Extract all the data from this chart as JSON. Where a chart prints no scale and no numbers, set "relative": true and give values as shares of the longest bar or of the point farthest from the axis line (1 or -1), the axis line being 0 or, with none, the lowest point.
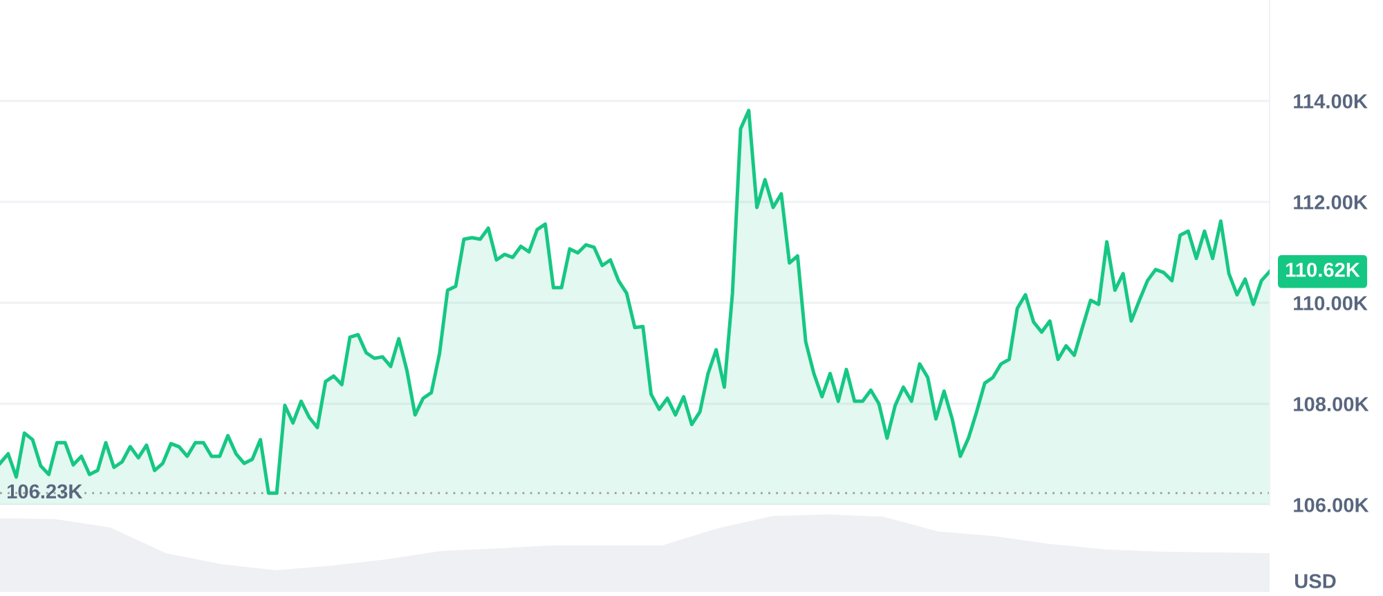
{
  "chart_data": [
    {
      "type": "area",
      "categories": [
        null,
        null,
        null,
        null,
        null,
        null,
        null,
        null,
        null,
        null,
        null,
        null,
        null,
        null,
        null,
        null,
        null,
        null,
        null,
        null,
        null,
        null,
        null,
        null,
        null,
        null,
        null,
        null,
        null,
        null,
        null,
        null,
        null,
        null,
        null,
        null,
        null,
        null,
        null,
        null,
        null,
        null,
        null,
        null,
        null,
        null,
        null,
        null,
        null,
        null,
        null,
        null,
        null,
        null,
        null,
        null,
        null,
        null,
        null,
        null,
        null,
        null,
        null,
        null,
        null,
        null,
        null,
        null,
        null,
        null,
        null,
        null,
        null,
        null,
        null,
        null,
        null,
        null,
        null,
        null,
        null,
        null,
        null,
        null,
        null,
        null,
        null,
        null,
        null,
        null,
        null,
        null,
        null,
        null,
        null,
        null,
        null,
        null,
        null,
        null,
        null,
        null,
        null,
        null,
        null,
        null,
        null,
        null,
        null,
        null,
        null,
        null,
        null,
        null,
        null,
        null,
        null,
        null,
        null,
        null,
        null,
        null,
        null,
        null,
        null,
        null,
        null,
        null,
        null,
        null,
        null,
        null,
        null,
        null,
        null,
        null,
        null,
        null,
        null,
        null,
        null,
        null,
        null,
        null,
        null,
        null,
        null,
        null,
        null,
        null,
        null,
        null,
        null,
        null,
        null,
        null,
        null
      ],
      "series": [
        {
          "color": "#16c784",
          "values": [
            106.82,
            107.01,
            106.55,
            107.42,
            107.29,
            106.77,
            106.6,
            107.23,
            107.23,
            106.79,
            106.96,
            106.6,
            106.68,
            107.23,
            106.74,
            106.85,
            107.15,
            106.93,
            107.18,
            106.68,
            106.82,
            107.21,
            107.15,
            106.96,
            107.23,
            107.23,
            106.96,
            106.96,
            107.37,
            107.01,
            106.82,
            106.9,
            107.29,
            106.23,
            106.23,
            107.97,
            107.62,
            108.05,
            107.73,
            107.53,
            108.44,
            108.55,
            108.38,
            109.32,
            109.37,
            109.01,
            108.9,
            108.93,
            108.74,
            109.29,
            108.66,
            107.78,
            108.11,
            108.22,
            108.99,
            110.25,
            110.33,
            111.26,
            111.29,
            111.26,
            111.48,
            110.85,
            110.96,
            110.9,
            111.12,
            111.01,
            111.45,
            111.56,
            110.3,
            110.3,
            111.07,
            110.99,
            111.15,
            111.1,
            110.74,
            110.85,
            110.44,
            110.19,
            109.51,
            109.53,
            108.19,
            107.89,
            108.11,
            107.78,
            108.14,
            107.59,
            107.84,
            108.6,
            109.07,
            108.33,
            110.19,
            113.45,
            113.81,
            111.89,
            112.44,
            111.89,
            112.16,
            110.79,
            110.93,
            109.23,
            108.6,
            108.14,
            108.6,
            108.05,
            108.68,
            108.05,
            108.05,
            108.27,
            108.0,
            107.32,
            107.97,
            108.33,
            108.05,
            108.79,
            108.52,
            107.7,
            108.25,
            107.7,
            106.96,
            107.32,
            107.84,
            108.41,
            108.52,
            108.79,
            108.88,
            109.89,
            110.16,
            109.62,
            109.42,
            109.64,
            108.88,
            109.15,
            108.96,
            109.51,
            110.05,
            109.97,
            111.21,
            110.25,
            110.58,
            109.64,
            110.05,
            110.44,
            110.66,
            110.6,
            110.44,
            111.34,
            111.42,
            110.88,
            111.42,
            110.88,
            111.62,
            110.58,
            110.16,
            110.47,
            109.97,
            110.44,
            110.62
          ]
        }
      ],
      "ylim": [
        106,
        116
      ],
      "yticks": [
        {
          "value": 106,
          "label": "106.00K"
        },
        {
          "value": 108,
          "label": "108.00K"
        },
        {
          "value": 110,
          "label": "110.00K"
        },
        {
          "value": 112,
          "label": "112.00K"
        },
        {
          "value": 114,
          "label": "114.00K"
        }
      ],
      "tick_labels": "y",
      "grid": "y",
      "ref_lines": [
        {
          "axis": "y",
          "value": 106.23,
          "label": "106.23K",
          "color": "#999999",
          "line_style": "dotted"
        }
      ],
      "ylabel": "USD",
      "annotations": [
        "110.62K"
      ]
    },
    {
      "type": "area",
      "relative": true,
      "tick_labels": false,
      "categories": [
        null,
        null,
        null,
        null,
        null,
        null,
        null,
        null,
        null,
        null,
        null,
        null,
        null,
        null,
        null,
        null,
        null,
        null,
        null,
        null,
        null,
        null,
        null,
        null
      ],
      "series": [
        {
          "color": "#eef0f4",
          "values": [
            0.95,
            0.94,
            0.83,
            0.5,
            0.36,
            0.28,
            0.34,
            0.42,
            0.53,
            0.56,
            0.6,
            0.6,
            0.6,
            0.82,
            0.98,
            1,
            0.97,
            0.78,
            0.72,
            0.62,
            0.55,
            0.52,
            0.51,
            0.5
          ]
        }
      ]
    }
  ]
}
